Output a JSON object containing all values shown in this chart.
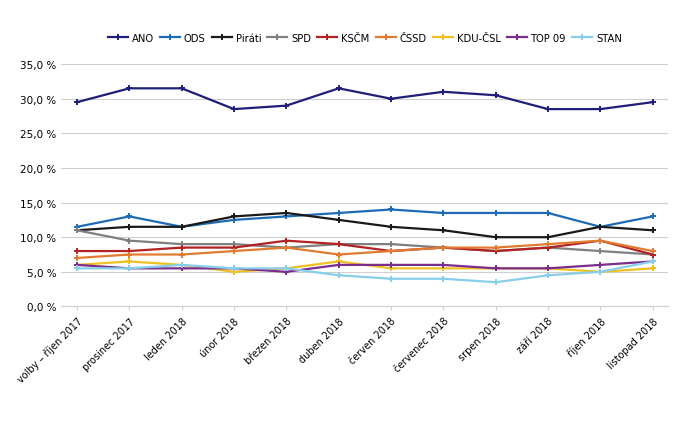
{
  "x_labels": [
    "volby – říjen 2017",
    "prosinec 2017",
    "leden 2018",
    "únor 2018",
    "březen 2018",
    "duben 2018",
    "červen 2018",
    "červenec 2018",
    "srpen 2018",
    "září 2018",
    "říjen 2018",
    "listopad 2018"
  ],
  "series": [
    {
      "name": "ANO",
      "color": "#1f1f7a",
      "values": [
        29.5,
        31.5,
        31.5,
        28.5,
        29.0,
        31.5,
        30.0,
        31.0,
        30.5,
        28.5,
        28.5,
        29.5
      ]
    },
    {
      "name": "ODS",
      "color": "#1e6bb5",
      "values": [
        11.5,
        13.0,
        11.5,
        12.5,
        13.0,
        13.5,
        14.0,
        13.5,
        13.5,
        13.5,
        11.5,
        13.0
      ]
    },
    {
      "name": "Piráti",
      "color": "#1a1a1a",
      "values": [
        11.0,
        11.5,
        11.5,
        13.0,
        13.5,
        12.5,
        11.5,
        11.0,
        10.0,
        10.0,
        11.5,
        11.0
      ]
    },
    {
      "name": "SPD",
      "color": "#808080",
      "values": [
        11.0,
        9.5,
        9.0,
        9.0,
        8.5,
        9.0,
        9.0,
        8.5,
        8.0,
        8.5,
        8.0,
        7.5
      ]
    },
    {
      "name": "KSČM",
      "color": "#b22222",
      "values": [
        8.0,
        8.0,
        8.5,
        8.5,
        9.5,
        9.0,
        8.0,
        8.5,
        8.0,
        8.5,
        9.5,
        7.5
      ]
    },
    {
      "name": "ČSSD",
      "color": "#e07b30",
      "values": [
        7.0,
        7.5,
        7.5,
        8.0,
        8.5,
        7.5,
        8.0,
        8.5,
        8.5,
        9.0,
        9.5,
        8.0
      ]
    },
    {
      "name": "KDU-ČSL",
      "color": "#f0c020",
      "values": [
        6.0,
        6.5,
        6.0,
        5.0,
        5.5,
        6.5,
        5.5,
        5.5,
        5.5,
        5.5,
        5.0,
        5.5
      ]
    },
    {
      "name": "TOP 09",
      "color": "#7b2d8b",
      "values": [
        6.0,
        5.5,
        5.5,
        5.5,
        5.0,
        6.0,
        6.0,
        6.0,
        5.5,
        5.5,
        6.0,
        6.5
      ]
    },
    {
      "name": "STAN",
      "color": "#87ceeb",
      "values": [
        5.5,
        5.5,
        6.0,
        5.5,
        5.5,
        4.5,
        4.0,
        4.0,
        3.5,
        4.5,
        5.0,
        6.5
      ]
    }
  ],
  "ylim": [
    0,
    37
  ],
  "yticks": [
    0.0,
    5.0,
    10.0,
    15.0,
    20.0,
    25.0,
    30.0,
    35.0
  ],
  "figsize": [
    6.82,
    4.27
  ],
  "dpi": 100,
  "bg_color": "#ffffff",
  "grid_color": "#d0d0d0",
  "marker": "+",
  "marker_size": 5,
  "linewidth": 1.6
}
